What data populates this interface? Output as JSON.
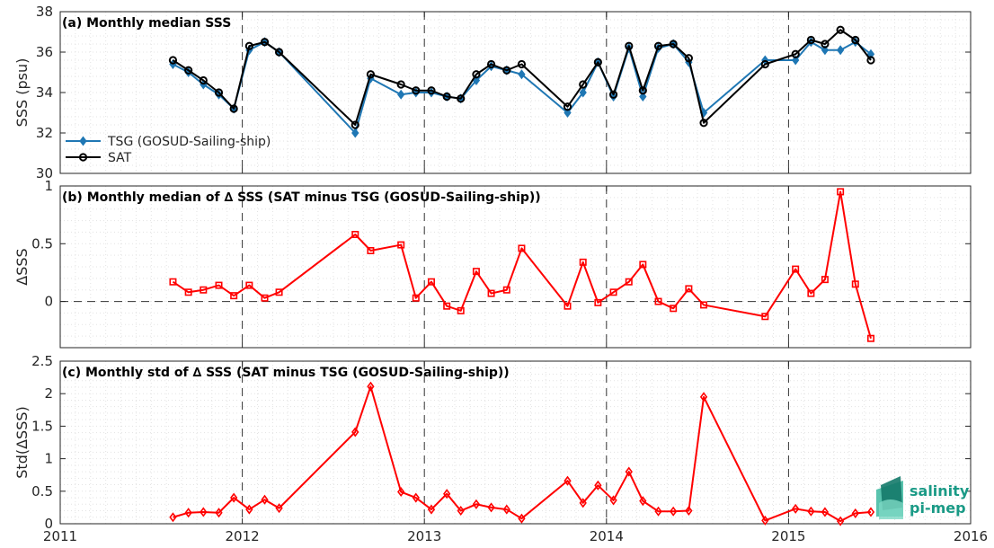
{
  "chart_data": [
    {
      "type": "line",
      "title": "(a) Monthly median SSS",
      "xlabel": "",
      "ylabel": "SSS (psu)",
      "xlim": [
        "2011-01-01",
        "2016-01-01"
      ],
      "ylim": [
        30,
        38
      ],
      "yticks": [
        30,
        32,
        34,
        36,
        38
      ],
      "grid": true,
      "legend_position": "bottom-left",
      "series": [
        {
          "name": "TSG (GOSUD-Sailing-ship)",
          "color": "#1f77b4",
          "marker": "diamond",
          "x": [
            "2011-08-15",
            "2011-09-15",
            "2011-10-15",
            "2011-11-15",
            "2011-12-15",
            "2012-01-15",
            "2012-02-15",
            "2012-03-15",
            "2012-08-15",
            "2012-09-15",
            "2012-11-15",
            "2012-12-15",
            "2013-01-15",
            "2013-02-15",
            "2013-03-15",
            "2013-04-15",
            "2013-05-15",
            "2013-06-15",
            "2013-07-15",
            "2013-10-15",
            "2013-11-15",
            "2013-12-15",
            "2014-01-15",
            "2014-02-15",
            "2014-03-15",
            "2014-04-15",
            "2014-05-15",
            "2014-06-15",
            "2014-07-15",
            "2014-11-15",
            "2015-01-15",
            "2015-02-15",
            "2015-03-15",
            "2015-04-15",
            "2015-05-15",
            "2015-06-15"
          ],
          "y": [
            35.4,
            35.0,
            34.4,
            33.9,
            33.2,
            36.1,
            36.5,
            36.0,
            32.0,
            34.7,
            33.9,
            34.0,
            34.0,
            33.8,
            33.7,
            34.6,
            35.3,
            35.1,
            34.9,
            33.0,
            34.0,
            35.5,
            33.8,
            36.2,
            33.8,
            36.2,
            36.4,
            35.5,
            33.0,
            35.6,
            35.6,
            36.5,
            36.1,
            36.1,
            36.5,
            35.9
          ]
        },
        {
          "name": "SAT",
          "color": "#000000",
          "marker": "circle",
          "x": [
            "2011-08-15",
            "2011-09-15",
            "2011-10-15",
            "2011-11-15",
            "2011-12-15",
            "2012-01-15",
            "2012-02-15",
            "2012-03-15",
            "2012-08-15",
            "2012-09-15",
            "2012-11-15",
            "2012-12-15",
            "2013-01-15",
            "2013-02-15",
            "2013-03-15",
            "2013-04-15",
            "2013-05-15",
            "2013-06-15",
            "2013-07-15",
            "2013-10-15",
            "2013-11-15",
            "2013-12-15",
            "2014-01-15",
            "2014-02-15",
            "2014-03-15",
            "2014-04-15",
            "2014-05-15",
            "2014-06-15",
            "2014-07-15",
            "2014-11-15",
            "2015-01-15",
            "2015-02-15",
            "2015-03-15",
            "2015-04-15",
            "2015-05-15",
            "2015-06-15"
          ],
          "y": [
            35.6,
            35.1,
            34.6,
            34.0,
            33.2,
            36.3,
            36.5,
            36.0,
            32.4,
            34.9,
            34.4,
            34.1,
            34.1,
            33.8,
            33.7,
            34.9,
            35.4,
            35.1,
            35.4,
            33.3,
            34.4,
            35.5,
            33.9,
            36.3,
            34.1,
            36.3,
            36.4,
            35.7,
            32.5,
            35.4,
            35.9,
            36.6,
            36.4,
            37.1,
            36.6,
            35.6
          ]
        }
      ]
    },
    {
      "type": "line",
      "title": "(b) Monthly median of ∆ SSS (SAT minus TSG (GOSUD-Sailing-ship))",
      "xlabel": "",
      "ylabel": "ΔSSS",
      "xlim": [
        "2011-01-01",
        "2016-01-01"
      ],
      "ylim": [
        -0.4,
        1.0
      ],
      "yticks": [
        0,
        0.5,
        1
      ],
      "ytick_labels": [
        "0",
        "0.5",
        "1"
      ],
      "zero_line": true,
      "grid": true,
      "series": [
        {
          "name": "",
          "color": "#ff0000",
          "marker": "square",
          "x": [
            "2011-08-15",
            "2011-09-15",
            "2011-10-15",
            "2011-11-15",
            "2011-12-15",
            "2012-01-15",
            "2012-02-15",
            "2012-03-15",
            "2012-08-15",
            "2012-09-15",
            "2012-11-15",
            "2012-12-15",
            "2013-01-15",
            "2013-02-15",
            "2013-03-15",
            "2013-04-15",
            "2013-05-15",
            "2013-06-15",
            "2013-07-15",
            "2013-10-15",
            "2013-11-15",
            "2013-12-15",
            "2014-01-15",
            "2014-02-15",
            "2014-03-15",
            "2014-04-15",
            "2014-05-15",
            "2014-06-15",
            "2014-07-15",
            "2014-11-15",
            "2015-01-15",
            "2015-02-15",
            "2015-03-15",
            "2015-04-15",
            "2015-05-15",
            "2015-06-15"
          ],
          "y": [
            0.17,
            0.08,
            0.1,
            0.14,
            0.05,
            0.14,
            0.03,
            0.08,
            0.58,
            0.44,
            0.49,
            0.03,
            0.17,
            -0.04,
            -0.08,
            0.26,
            0.07,
            0.1,
            0.46,
            -0.04,
            0.34,
            -0.01,
            0.08,
            0.17,
            0.32,
            0.0,
            -0.06,
            0.11,
            -0.03,
            -0.13,
            0.28,
            0.07,
            0.19,
            0.95,
            0.15,
            -0.32
          ]
        }
      ]
    },
    {
      "type": "line",
      "title": "(c) Monthly std of ∆ SSS (SAT minus TSG (GOSUD-Sailing-ship))",
      "xlabel": "",
      "ylabel": "Std(ΔSSS)",
      "xlim": [
        "2011-01-01",
        "2016-01-01"
      ],
      "xticks": [
        "2011",
        "2012",
        "2013",
        "2014",
        "2015",
        "2016"
      ],
      "ylim": [
        0,
        2.5
      ],
      "yticks": [
        0,
        0.5,
        1,
        1.5,
        2,
        2.5
      ],
      "ytick_labels": [
        "0",
        "0.5",
        "1",
        "1.5",
        "2",
        "2.5"
      ],
      "grid": true,
      "series": [
        {
          "name": "",
          "color": "#ff0000",
          "marker": "diamond",
          "x": [
            "2011-08-15",
            "2011-09-15",
            "2011-10-15",
            "2011-11-15",
            "2011-12-15",
            "2012-01-15",
            "2012-02-15",
            "2012-03-15",
            "2012-08-15",
            "2012-09-15",
            "2012-11-15",
            "2012-12-15",
            "2013-01-15",
            "2013-02-15",
            "2013-03-15",
            "2013-04-15",
            "2013-05-15",
            "2013-06-15",
            "2013-07-15",
            "2013-10-15",
            "2013-11-15",
            "2013-12-15",
            "2014-01-15",
            "2014-02-15",
            "2014-03-15",
            "2014-04-15",
            "2014-05-15",
            "2014-06-15",
            "2014-07-15",
            "2014-11-15",
            "2015-01-15",
            "2015-02-15",
            "2015-03-15",
            "2015-04-15",
            "2015-05-15",
            "2015-06-15"
          ],
          "y": [
            0.1,
            0.17,
            0.18,
            0.17,
            0.4,
            0.22,
            0.37,
            0.24,
            1.41,
            2.11,
            0.49,
            0.4,
            0.22,
            0.46,
            0.2,
            0.3,
            0.25,
            0.22,
            0.08,
            0.66,
            0.32,
            0.59,
            0.36,
            0.8,
            0.35,
            0.19,
            0.19,
            0.2,
            1.95,
            0.05,
            0.23,
            0.19,
            0.18,
            0.04,
            0.16,
            0.18
          ]
        }
      ]
    }
  ],
  "logo": {
    "line1": "salinity",
    "line2": "pi-mep",
    "color": "#1a9a86"
  }
}
